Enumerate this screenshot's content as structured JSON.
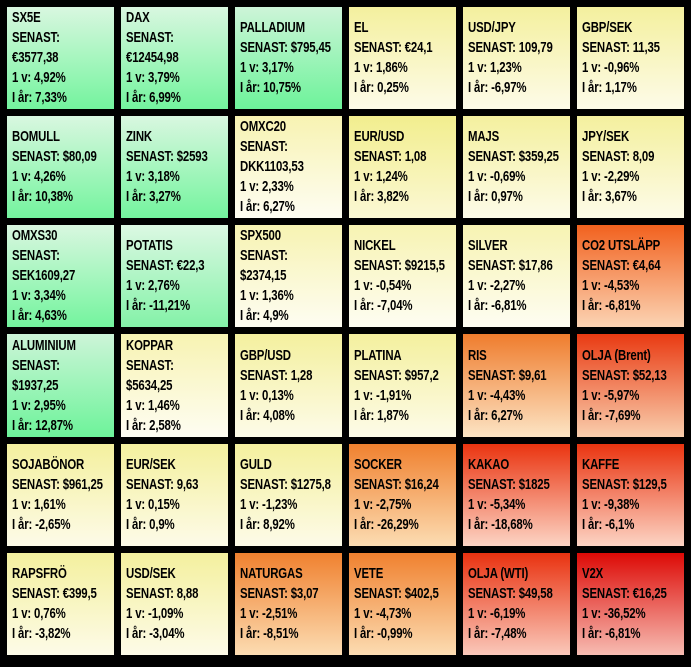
{
  "chart_data": {
    "type": "heatmap",
    "rows": 6,
    "columns": 6,
    "value_label": "SENAST",
    "period_labels": [
      "1 v",
      "I år"
    ],
    "cells": [
      {
        "name": "SX5E",
        "senast": "€3577,38",
        "week_pct": 4.92,
        "year_pct": 7.33,
        "color_top": "#d9f7e0",
        "color_bottom": "#74f49e",
        "lines": [
          "SENAST:",
          "€3577,38",
          "1 v: 4,92%",
          "I år: 7,33%"
        ]
      },
      {
        "name": "DAX",
        "senast": "€12454,98",
        "week_pct": 3.79,
        "year_pct": 6.99,
        "color_top": "#d9f7e0",
        "color_bottom": "#74f49e",
        "lines": [
          "SENAST:",
          "€12454,98",
          "1 v: 3,79%",
          "I år: 6,99%"
        ]
      },
      {
        "name": "PALLADIUM",
        "senast": "$795,45",
        "week_pct": 3.17,
        "year_pct": 10.75,
        "color_top": "#cdf4d8",
        "color_bottom": "#6df39a",
        "lines": [
          "SENAST: $795,45",
          "1 v: 3,17%",
          "I år: 10,75%"
        ]
      },
      {
        "name": "EL",
        "senast": "€24,1",
        "week_pct": 1.86,
        "year_pct": 0.25,
        "color_top": "#f4f09e",
        "color_bottom": "#fdfbe8",
        "lines": [
          "SENAST: €24,1",
          "1 v: 1,86%",
          "I år: 0,25%"
        ]
      },
      {
        "name": "USD/JPY",
        "senast": "109,79",
        "week_pct": 1.23,
        "year_pct": -6.97,
        "color_top": "#f4f09e",
        "color_bottom": "#fdfbe8",
        "lines": [
          "SENAST: 109,79",
          "1 v: 1,23%",
          "I år: -6,97%"
        ]
      },
      {
        "name": "GBP/SEK",
        "senast": "11,35",
        "week_pct": -0.96,
        "year_pct": 1.17,
        "color_top": "#f4f09e",
        "color_bottom": "#fdfbe8",
        "lines": [
          "SENAST: 11,35",
          "1 v: -0,96%",
          "I år: 1,17%"
        ]
      },
      {
        "name": "BOMULL",
        "senast": "$80,09",
        "week_pct": 4.26,
        "year_pct": 10.38,
        "color_top": "#d9f7e0",
        "color_bottom": "#74f49e",
        "lines": [
          "SENAST: $80,09",
          "1 v: 4,26%",
          "I år: 10,38%"
        ]
      },
      {
        "name": "ZINK",
        "senast": "$2593",
        "week_pct": 3.18,
        "year_pct": 3.27,
        "color_top": "#d9f7e0",
        "color_bottom": "#74f49e",
        "lines": [
          "SENAST: $2593",
          "1 v: 3,18%",
          "I år: 3,27%"
        ]
      },
      {
        "name": "OMXC20",
        "senast": "DKK1103,53",
        "week_pct": 2.33,
        "year_pct": 6.27,
        "color_top": "#f7f3b2",
        "color_bottom": "#fefdf2",
        "lines": [
          "SENAST:",
          "DKK1103,53",
          "1 v: 2,33%",
          "I år: 6,27%"
        ]
      },
      {
        "name": "EUR/USD",
        "senast": "1,08",
        "week_pct": 1.24,
        "year_pct": 3.82,
        "color_top": "#f2ee8e",
        "color_bottom": "#fbf8d4",
        "lines": [
          "SENAST: 1,08",
          "1 v: 1,24%",
          "I år: 3,82%"
        ]
      },
      {
        "name": "MAJS",
        "senast": "$359,25",
        "week_pct": -0.69,
        "year_pct": 0.97,
        "color_top": "#f4f09e",
        "color_bottom": "#fdfbe8",
        "lines": [
          "SENAST: $359,25",
          "1 v: -0,69%",
          "I år: 0,97%"
        ]
      },
      {
        "name": "JPY/SEK",
        "senast": "8,09",
        "week_pct": -2.29,
        "year_pct": 3.67,
        "color_top": "#f4f09e",
        "color_bottom": "#fdfbe8",
        "lines": [
          "SENAST: 8,09",
          "1 v: -2,29%",
          "I år: 3,67%"
        ]
      },
      {
        "name": "OMXS30",
        "senast": "SEK1609,27",
        "week_pct": 3.34,
        "year_pct": 4.63,
        "color_top": "#d9f7e0",
        "color_bottom": "#74f49e",
        "lines": [
          "SENAST:",
          "SEK1609,27",
          "1 v: 3,34%",
          "I år: 4,63%"
        ]
      },
      {
        "name": "POTATIS",
        "senast": "€22,3",
        "week_pct": 2.76,
        "year_pct": -11.21,
        "color_top": "#dcf8e3",
        "color_bottom": "#84f2a8",
        "lines": [
          "SENAST: €22,3",
          "1 v: 2,76%",
          "I år: -11,21%"
        ]
      },
      {
        "name": "SPX500",
        "senast": "$2374,15",
        "week_pct": 1.36,
        "year_pct": 4.9,
        "color_top": "#f7f3b2",
        "color_bottom": "#fefdf2",
        "lines": [
          "SENAST:",
          "$2374,15",
          "1 v: 1,36%",
          "I år: 4,9%"
        ]
      },
      {
        "name": "NICKEL",
        "senast": "$9215,5",
        "week_pct": -0.54,
        "year_pct": -7.04,
        "color_top": "#f7f3b2",
        "color_bottom": "#fefdf2",
        "lines": [
          "SENAST: $9215,5",
          "1 v: -0,54%",
          "I år: -7,04%"
        ]
      },
      {
        "name": "SILVER",
        "senast": "$17,86",
        "week_pct": -2.27,
        "year_pct": -6.81,
        "color_top": "#f7f3b2",
        "color_bottom": "#fefdf2",
        "lines": [
          "SENAST: $17,86",
          "1 v: -2,27%",
          "I år: -6,81%"
        ]
      },
      {
        "name": "CO2 UTSLÄPP",
        "senast": "€4,64",
        "week_pct": -4.53,
        "year_pct": -6.81,
        "color_top": "#f2611e",
        "color_bottom": "#fbd4b4",
        "lines": [
          "SENAST: €4,64",
          "1 v: -4,53%",
          "I år: -6,81%"
        ]
      },
      {
        "name": "ALUMINIUM",
        "senast": "$1937,25",
        "week_pct": 2.95,
        "year_pct": 12.87,
        "color_top": "#cdf4d8",
        "color_bottom": "#6df39a",
        "lines": [
          "SENAST:",
          "$1937,25",
          "1 v: 2,95%",
          "I år: 12,87%"
        ]
      },
      {
        "name": "KOPPAR",
        "senast": "$5634,25",
        "week_pct": 1.46,
        "year_pct": 2.58,
        "color_top": "#f7f3b2",
        "color_bottom": "#fefdf2",
        "lines": [
          "SENAST:",
          "$5634,25",
          "1 v: 1,46%",
          "I år: 2,58%"
        ]
      },
      {
        "name": "GBP/USD",
        "senast": "1,28",
        "week_pct": 0.13,
        "year_pct": 4.08,
        "color_top": "#f4f09e",
        "color_bottom": "#fdfbe8",
        "lines": [
          "SENAST: 1,28",
          "1 v: 0,13%",
          "I år: 4,08%"
        ]
      },
      {
        "name": "PLATINA",
        "senast": "$957,2",
        "week_pct": -1.91,
        "year_pct": 1.87,
        "color_top": "#f4f09e",
        "color_bottom": "#fdfbe8",
        "lines": [
          "SENAST: $957,2",
          "1 v: -1,91%",
          "I år: 1,87%"
        ]
      },
      {
        "name": "RIS",
        "senast": "$9,61",
        "week_pct": -4.43,
        "year_pct": 6.27,
        "color_top": "#ef7c2d",
        "color_bottom": "#fce4c4",
        "lines": [
          "SENAST: $9,61",
          "1 v: -4,43%",
          "I år: 6,27%"
        ]
      },
      {
        "name": "OLJA (Brent)",
        "senast": "$52,13",
        "week_pct": -5.97,
        "year_pct": -7.69,
        "color_top": "#e93a12",
        "color_bottom": "#f9cead",
        "lines": [
          "SENAST: $52,13",
          "1 v: -5,97%",
          "I år: -7,69%"
        ]
      },
      {
        "name": "SOJABÖNOR",
        "senast": "$961,25",
        "week_pct": 1.61,
        "year_pct": -2.65,
        "color_top": "#f4f09e",
        "color_bottom": "#fdfbe8",
        "lines": [
          "SENAST: $961,25",
          "1 v: 1,61%",
          "I år: -2,65%"
        ]
      },
      {
        "name": "EUR/SEK",
        "senast": "9,63",
        "week_pct": 0.15,
        "year_pct": 0.9,
        "color_top": "#f4f09e",
        "color_bottom": "#fdfbe8",
        "lines": [
          "SENAST: 9,63",
          "1 v: 0,15%",
          "I år: 0,9%"
        ]
      },
      {
        "name": "GULD",
        "senast": "$1275,8",
        "week_pct": -1.23,
        "year_pct": 8.92,
        "color_top": "#f4f09e",
        "color_bottom": "#fdfbe8",
        "lines": [
          "SENAST: $1275,8",
          "1 v: -1,23%",
          "I år: 8,92%"
        ]
      },
      {
        "name": "SOCKER",
        "senast": "$16,24",
        "week_pct": -2.75,
        "year_pct": -26.29,
        "color_top": "#f0812f",
        "color_bottom": "#fcdcb2",
        "lines": [
          "SENAST: $16,24",
          "1 v: -2,75%",
          "I år: -26,29%"
        ]
      },
      {
        "name": "KAKAO",
        "senast": "$1825",
        "week_pct": -5.34,
        "year_pct": -18.68,
        "color_top": "#ea3410",
        "color_bottom": "#fcd4c4",
        "lines": [
          "SENAST: $1825",
          "1 v: -5,34%",
          "I år: -18,68%"
        ]
      },
      {
        "name": "KAFFE",
        "senast": "$129,5",
        "week_pct": -9.38,
        "year_pct": -6.1,
        "color_top": "#ea3410",
        "color_bottom": "#fcd4c4",
        "lines": [
          "SENAST: $129,5",
          "1 v: -9,38%",
          "I år: -6,1%"
        ]
      },
      {
        "name": "RAPSFRÖ",
        "senast": "€399,5",
        "week_pct": 0.76,
        "year_pct": -3.82,
        "color_top": "#f4f09e",
        "color_bottom": "#fdfbe8",
        "lines": [
          "SENAST: €399,5",
          "1 v: 0,76%",
          "I år: -3,82%"
        ]
      },
      {
        "name": "USD/SEK",
        "senast": "8,88",
        "week_pct": -1.09,
        "year_pct": -3.04,
        "color_top": "#f4f09e",
        "color_bottom": "#fdfbe8",
        "lines": [
          "SENAST: 8,88",
          "1 v: -1,09%",
          "I år: -3,04%"
        ]
      },
      {
        "name": "NATURGAS",
        "senast": "$3,07",
        "week_pct": -2.51,
        "year_pct": -8.51,
        "color_top": "#f0812f",
        "color_bottom": "#fcdcb2",
        "lines": [
          "SENAST: $3,07",
          "1 v: -2,51%",
          "I år: -8,51%"
        ]
      },
      {
        "name": "VETE",
        "senast": "$402,5",
        "week_pct": -4.73,
        "year_pct": -0.99,
        "color_top": "#f0812f",
        "color_bottom": "#fcdcb2",
        "lines": [
          "SENAST: $402,5",
          "1 v: -4,73%",
          "I år: -0,99%"
        ]
      },
      {
        "name": "OLJA (WTI)",
        "senast": "$49,58",
        "week_pct": -6.19,
        "year_pct": -7.48,
        "color_top": "#e93210",
        "color_bottom": "#fac8ba",
        "lines": [
          "SENAST: $49,58",
          "1 v: -6,19%",
          "I år: -7,48%"
        ]
      },
      {
        "name": "V2X",
        "senast": "€16,25",
        "week_pct": -36.52,
        "year_pct": -6.81,
        "color_top": "#dd0a06",
        "color_bottom": "#f7bcb2",
        "lines": [
          "SENAST: €16,25",
          "1 v: -36,52%",
          "I år: -6,81%"
        ]
      }
    ]
  }
}
